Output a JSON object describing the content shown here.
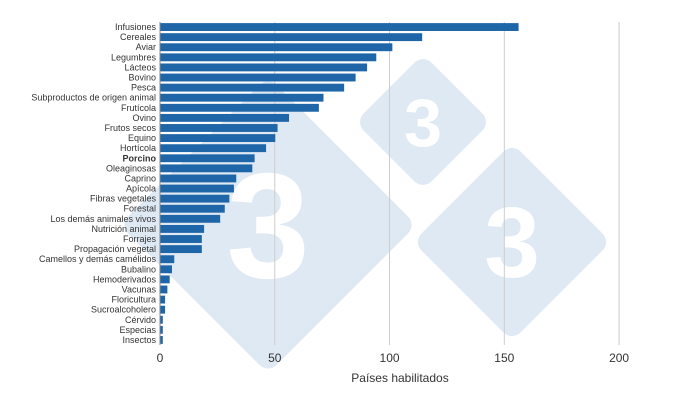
{
  "chart_data": {
    "type": "bar",
    "orientation": "horizontal",
    "title": "",
    "xlabel": "Países habilitados",
    "ylabel": "",
    "xlim": [
      0,
      220
    ],
    "xticks": [
      0,
      50,
      100,
      150,
      200
    ],
    "grid": "vertical",
    "bar_color": "#1f66a8",
    "highlight_color": "#e07b1f",
    "highlight_category": "Porcino",
    "categories": [
      "Infusiones",
      "Cereales",
      "Aviar",
      "Legumbres",
      "Lácteos",
      "Bovino",
      "Pesca",
      "Subproductos de origen animal",
      "Frutícola",
      "Ovino",
      "Frutos secos",
      "Equino",
      "Hortícola",
      "Porcino",
      "Oleaginosas",
      "Caprino",
      "Apícola",
      "Fibras vegetales",
      "Forestal",
      "Los demás animales vivos",
      "Nutrición animal",
      "Forrajes",
      "Propagación vegetal",
      "Camellos y demás camélidos",
      "Bubalino",
      "Hemoderivados",
      "Vacunas",
      "Floricultura",
      "Sucroalcoholero",
      "Cérvido",
      "Especias",
      "Insectos"
    ],
    "values": [
      156,
      114,
      101,
      94,
      90,
      85,
      80,
      71,
      69,
      56,
      51,
      50,
      46,
      41,
      40,
      33,
      32,
      30,
      28,
      26,
      19,
      18,
      18,
      6,
      5,
      4,
      3,
      2,
      2,
      1,
      1,
      1
    ]
  },
  "watermark": {
    "text": "3",
    "color": "#dfe9f3"
  }
}
